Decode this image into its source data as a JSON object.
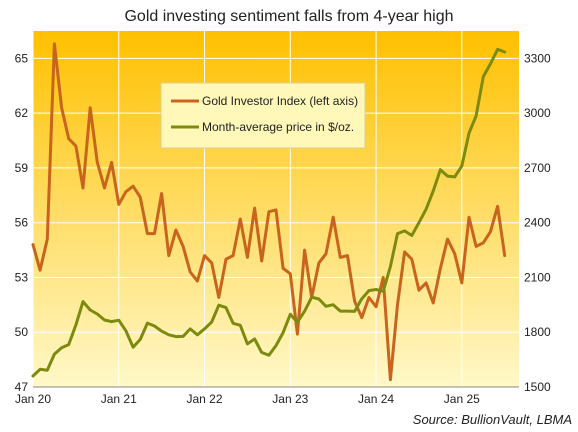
{
  "colors": {
    "index_line": "#c8641e",
    "price_line": "#7c8a10",
    "bg_top": "#ffc000",
    "bg_bottom": "#fff8c8",
    "grid": "#ffffff"
  },
  "chart_data": {
    "type": "line",
    "title": "Gold investing sentiment falls from 4-year high",
    "source": "Source: BullionVault, LBMA",
    "x_tick_labels": [
      "Jan 20",
      "Jan 21",
      "Jan 22",
      "Jan 23",
      "Jan 24",
      "Jan 25"
    ],
    "x_range_months": [
      0,
      68
    ],
    "grid": true,
    "legend_position": "upper-center",
    "y_left": {
      "min": 47,
      "max": 66.5,
      "ticks": [
        47,
        50,
        53,
        56,
        59,
        62,
        65
      ]
    },
    "y_right": {
      "min": 1500,
      "max": 3450,
      "ticks": [
        1500,
        1800,
        2100,
        2400,
        2700,
        3000,
        3300
      ]
    },
    "series": [
      {
        "name": "Gold Investor Index (left axis)",
        "axis": "left",
        "x_start": "Jan 2020",
        "values": [
          54.8,
          53.4,
          55.1,
          65.8,
          62.3,
          60.6,
          60.2,
          57.9,
          62.3,
          59.3,
          57.9,
          59.3,
          57.0,
          57.7,
          58.0,
          57.4,
          55.4,
          55.4,
          57.6,
          54.2,
          55.6,
          54.7,
          53.3,
          52.8,
          54.2,
          53.8,
          51.9,
          54.0,
          54.2,
          56.2,
          54.1,
          56.8,
          53.9,
          56.6,
          56.7,
          53.5,
          53.2,
          49.9,
          54.5,
          51.9,
          53.8,
          54.3,
          56.3,
          54.1,
          54.2,
          51.7,
          50.8,
          51.9,
          51.4,
          53.0,
          47.4,
          51.5,
          54.4,
          54.0,
          52.3,
          52.7,
          51.6,
          53.5,
          55.1,
          54.3,
          52.7,
          56.3,
          54.7,
          54.9,
          55.5,
          56.9,
          54.2
        ]
      },
      {
        "name": "Month-average price in $/oz.",
        "axis": "right",
        "x_start": "Jan 2020",
        "values": [
          1560,
          1597,
          1592,
          1680,
          1715,
          1732,
          1840,
          1968,
          1922,
          1900,
          1867,
          1858,
          1866,
          1808,
          1718,
          1760,
          1850,
          1834,
          1806,
          1786,
          1776,
          1777,
          1818,
          1786,
          1818,
          1856,
          1948,
          1935,
          1849,
          1838,
          1736,
          1763,
          1689,
          1674,
          1727,
          1798,
          1898,
          1855,
          1915,
          1992,
          1982,
          1942,
          1951,
          1916,
          1916,
          1914,
          1983,
          2028,
          2034,
          2024,
          2160,
          2340,
          2355,
          2330,
          2400,
          2474,
          2573,
          2690,
          2655,
          2651,
          2710,
          2890,
          2985,
          3200,
          3270,
          3350,
          3335
        ]
      }
    ]
  }
}
